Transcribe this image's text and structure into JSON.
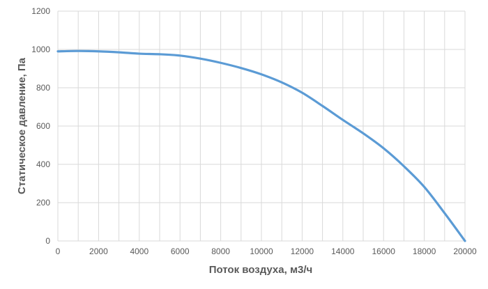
{
  "chart_data": {
    "type": "line",
    "title": "",
    "xlabel": "Поток воздуха, м3/ч",
    "ylabel": "Статическое давление, Па",
    "xlim": [
      0,
      20000
    ],
    "ylim": [
      0,
      1200
    ],
    "xticks": [
      0,
      2000,
      4000,
      6000,
      8000,
      10000,
      12000,
      14000,
      16000,
      18000,
      20000
    ],
    "yticks": [
      0,
      200,
      400,
      600,
      800,
      1000,
      1200
    ],
    "x_tick_labels": [
      "0",
      "2000",
      "4000",
      "6000",
      "8000",
      "10000",
      "12000",
      "14000",
      "16000",
      "18000",
      "20000"
    ],
    "y_tick_labels": [
      "0",
      "200",
      "400",
      "600",
      "800",
      "1000",
      "1200"
    ],
    "grid": true,
    "series": [
      {
        "color": "#5b9bd5",
        "x": [
          0,
          1000,
          2000,
          3000,
          4000,
          5000,
          6000,
          7000,
          8000,
          9000,
          10000,
          11000,
          12000,
          13000,
          14000,
          15000,
          16000,
          17000,
          18000,
          19000,
          20000
        ],
        "y": [
          990,
          992,
          990,
          985,
          978,
          975,
          968,
          952,
          930,
          903,
          870,
          828,
          774,
          705,
          632,
          562,
          484,
          390,
          282,
          145,
          0
        ]
      }
    ]
  }
}
